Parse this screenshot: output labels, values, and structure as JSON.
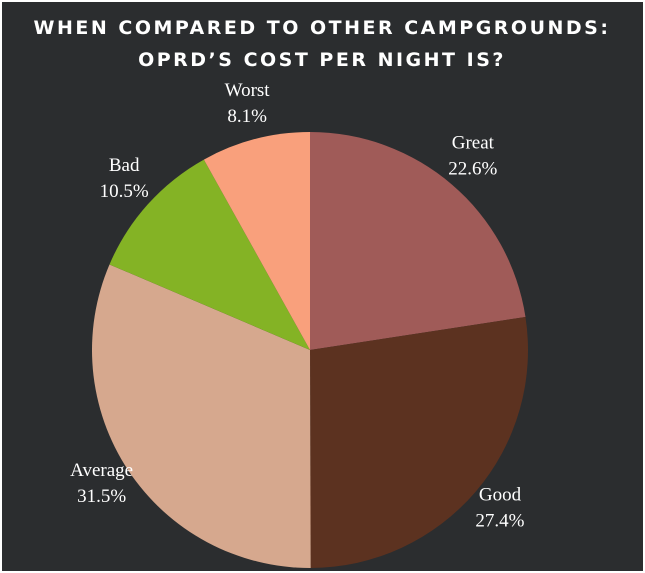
{
  "chart_data": {
    "type": "pie",
    "title": [
      "WHEN COMPARED TO OTHER CAMPGROUNDS:",
      "OPRD’S COST PER NIGHT IS?"
    ],
    "categories": [
      "Great",
      "Good",
      "Average",
      "Bad",
      "Worst"
    ],
    "values": [
      22.6,
      27.4,
      31.5,
      10.5,
      8.1
    ],
    "value_labels": [
      "22.6%",
      "27.4%",
      "31.5%",
      "10.5%",
      "8.1%"
    ],
    "colors": [
      "#a05b58",
      "#5c3220",
      "#d6a88e",
      "#84b325",
      "#f9a07c"
    ]
  }
}
